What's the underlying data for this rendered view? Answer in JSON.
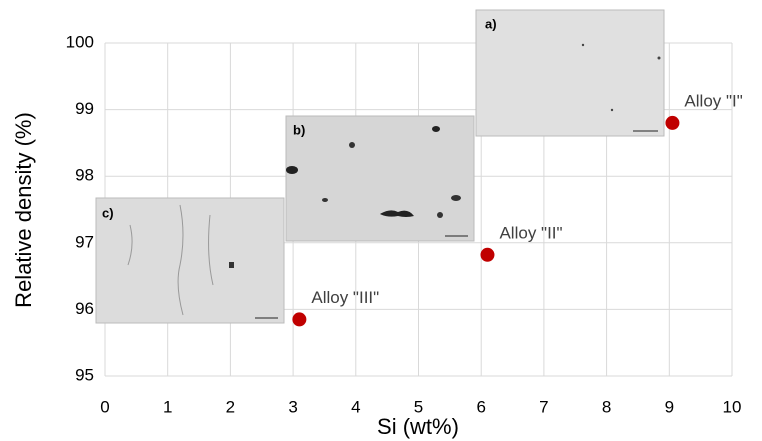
{
  "chart_data": {
    "type": "scatter",
    "x_label": "Si (wt%)",
    "y_label": "Relative density (%)",
    "x": [
      3.1,
      6.1,
      9.05
    ],
    "values": [
      95.85,
      96.82,
      98.8
    ],
    "point_labels": [
      "Alloy \"III\"",
      "Alloy \"II\"",
      "Alloy \"I\""
    ],
    "color": "#c00000",
    "xlim": [
      0,
      10
    ],
    "xticks": [
      0,
      1,
      2,
      3,
      4,
      5,
      6,
      7,
      8,
      9,
      10
    ],
    "ylim": [
      95,
      100
    ],
    "yticks": [
      95,
      96,
      97,
      98,
      99,
      100
    ],
    "grid": true,
    "insets": [
      "a)",
      "b)",
      "c)"
    ]
  }
}
